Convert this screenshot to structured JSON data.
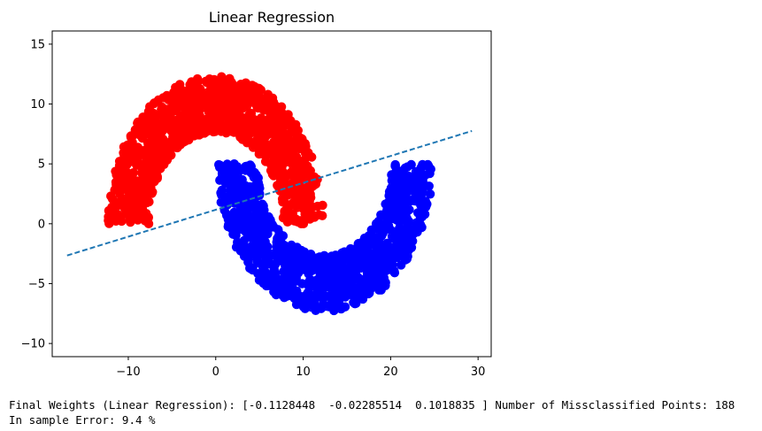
{
  "chart_data": {
    "type": "scatter",
    "title": "Linear Regression",
    "xlabel": "",
    "ylabel": "",
    "xlim": [
      -18.7,
      31.5
    ],
    "ylim": [
      -11.1,
      16.1
    ],
    "x_ticks": [
      -10,
      0,
      10,
      20,
      30
    ],
    "y_ticks": [
      -10,
      -5,
      0,
      5,
      10,
      15
    ],
    "x_tick_labels": [
      "−10",
      "0",
      "10",
      "20",
      "30"
    ],
    "y_tick_labels": [
      "−10",
      "−5",
      "0",
      "5",
      "10",
      "15"
    ],
    "grid": false,
    "series": [
      {
        "kind": "scatter",
        "color": "#ff0000",
        "moon": {
          "center": [
            0,
            0
          ],
          "radius": 10,
          "angle_range": [
            0,
            180
          ],
          "width": 4.7
        },
        "n_points": 1000,
        "x_range": [
          -15,
          15
        ],
        "y_range": [
          0.5,
          15
        ]
      },
      {
        "kind": "scatter",
        "color": "#0000ff",
        "moon": {
          "center": [
            12.5,
            5
          ],
          "radius": 10,
          "angle_range": [
            180,
            360
          ],
          "width": 4.7
        },
        "n_points": 1000,
        "x_range": [
          -2.5,
          27.5
        ],
        "y_range": [
          -10,
          5
        ]
      },
      {
        "kind": "line",
        "style": "dashed",
        "color": "#1f77b4",
        "x": [
          -17,
          29.3
        ],
        "y": [
          -2.65,
          7.75
        ]
      }
    ]
  },
  "output": {
    "line1": "Final Weights (Linear Regression): [-0.1128448  -0.02285514  0.1018835 ] Number of Missclassified Points: 188",
    "line2": "In sample Error: 9.4 %"
  }
}
